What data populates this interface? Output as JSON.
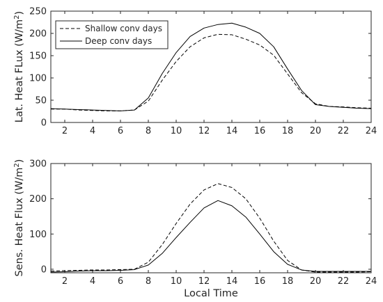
{
  "chart_data": [
    {
      "type": "line",
      "ylabel": "Lat. Heat FLux (W/m",
      "ylabel_sup": "2",
      "ylabel_end": ")",
      "xlabel": "",
      "xlim": [
        1,
        24
      ],
      "ylim": [
        0,
        250
      ],
      "xticks": [
        2,
        4,
        6,
        8,
        10,
        12,
        14,
        16,
        18,
        20,
        22,
        24
      ],
      "yticks": [
        0,
        50,
        100,
        150,
        200,
        250
      ],
      "grid": false,
      "legend": "top-left",
      "x": [
        1,
        2,
        3,
        4,
        5,
        6,
        7,
        8,
        9,
        10,
        11,
        12,
        13,
        14,
        15,
        16,
        17,
        18,
        19,
        20,
        21,
        22,
        23,
        24
      ],
      "series": [
        {
          "name": "Shallow conv days",
          "style": "dashed",
          "color": "#000000",
          "values": [
            30,
            30,
            28,
            27,
            26,
            26,
            28,
            48,
            95,
            137,
            170,
            190,
            198,
            197,
            187,
            174,
            151,
            109,
            67,
            42,
            36,
            35,
            33,
            32
          ]
        },
        {
          "name": "Deep conv days",
          "style": "solid",
          "color": "#000000",
          "values": [
            31,
            30,
            29,
            28,
            27,
            26,
            28,
            55,
            110,
            157,
            193,
            212,
            220,
            223,
            214,
            200,
            170,
            120,
            72,
            40,
            36,
            34,
            32,
            31
          ]
        }
      ]
    },
    {
      "type": "line",
      "ylabel": "Sens. Heat Flux (W/m",
      "ylabel_sup": "2",
      "ylabel_end": ")",
      "xlabel": "Local Time",
      "xlim": [
        1,
        24
      ],
      "ylim": [
        -10,
        300
      ],
      "xticks": [
        2,
        4,
        6,
        8,
        10,
        12,
        14,
        16,
        18,
        20,
        22,
        24
      ],
      "yticks": [
        0,
        100,
        200,
        300
      ],
      "grid": false,
      "legend": "none",
      "x": [
        1,
        2,
        3,
        4,
        5,
        6,
        7,
        8,
        9,
        10,
        11,
        12,
        13,
        14,
        15,
        16,
        17,
        18,
        19,
        20,
        21,
        22,
        23,
        24
      ],
      "series": [
        {
          "name": "Shallow conv days",
          "style": "dashed",
          "color": "#000000",
          "values": [
            -5,
            -4,
            -3,
            -2,
            -2,
            -1,
            0,
            20,
            70,
            130,
            185,
            225,
            243,
            232,
            200,
            145,
            80,
            25,
            -2,
            -8,
            -8,
            -8,
            -8,
            -7
          ]
        },
        {
          "name": "Deep conv days",
          "style": "solid",
          "color": "#000000",
          "values": [
            -8,
            -7,
            -5,
            -4,
            -4,
            -3,
            -1,
            12,
            45,
            90,
            133,
            174,
            195,
            180,
            148,
            100,
            50,
            14,
            -2,
            -6,
            -6,
            -6,
            -6,
            -6
          ]
        }
      ]
    }
  ]
}
